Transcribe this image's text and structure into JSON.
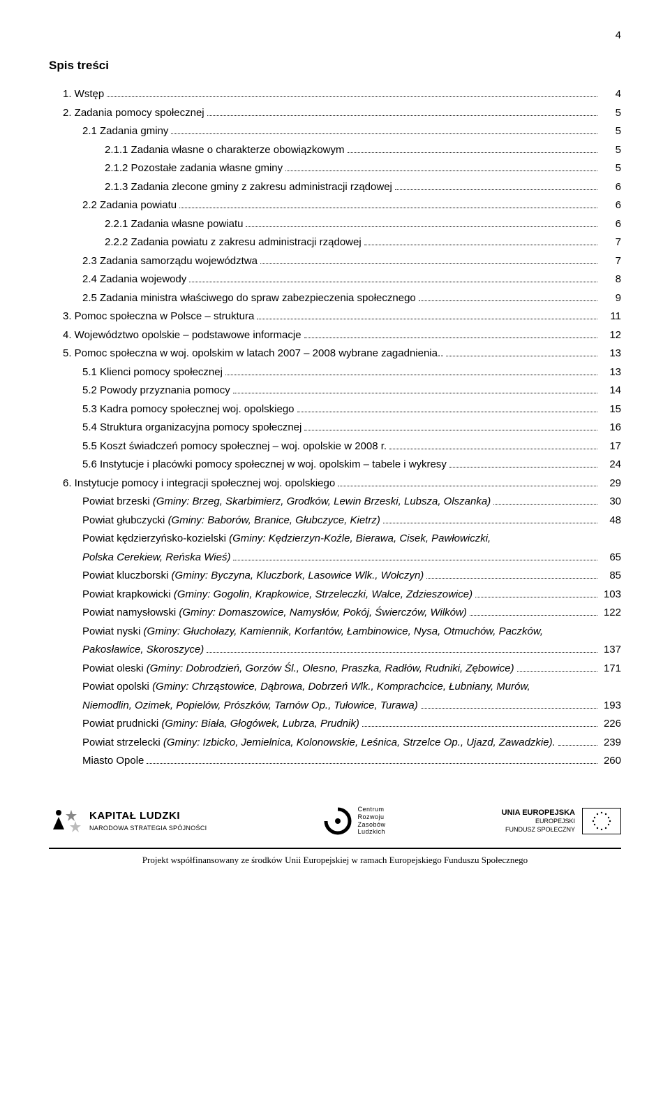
{
  "page_number_top": "4",
  "title": "Spis treści",
  "toc": [
    {
      "label": "1.  Wstęp",
      "page": "4",
      "indent": 0
    },
    {
      "label": "2.  Zadania pomocy społecznej",
      "page": "5",
      "indent": 0
    },
    {
      "label": "2.1 Zadania gminy",
      "page": "5",
      "indent": 1
    },
    {
      "label": "2.1.1  Zadania własne o charakterze obowiązkowym",
      "page": "5",
      "indent": 2
    },
    {
      "label": "2.1.2  Pozostałe zadania własne gminy",
      "page": "5",
      "indent": 2
    },
    {
      "label": "2.1.3  Zadania zlecone gminy z zakresu administracji rządowej",
      "page": "6",
      "indent": 2
    },
    {
      "label": "2.2 Zadania powiatu",
      "page": "6",
      "indent": 1
    },
    {
      "label": "2.2.1  Zadania własne powiatu",
      "page": "6",
      "indent": 2
    },
    {
      "label": "2.2.2  Zadania powiatu z zakresu administracji rządowej",
      "page": "7",
      "indent": 2
    },
    {
      "label": "2.3 Zadania samorządu województwa",
      "page": "7",
      "indent": 1
    },
    {
      "label": "2.4 Zadania wojewody",
      "page": "8",
      "indent": 1
    },
    {
      "label": "2.5 Zadania ministra właściwego do spraw zabezpieczenia społecznego",
      "page": "9",
      "indent": 1
    },
    {
      "label": "3.  Pomoc społeczna w Polsce – struktura",
      "page": "11",
      "indent": 0
    },
    {
      "label": "4.  Województwo opolskie – podstawowe informacje",
      "page": "12",
      "indent": 0
    },
    {
      "label": "5.  Pomoc społeczna w woj. opolskim w latach 2007 – 2008 wybrane zagadnienia..",
      "page": "13",
      "indent": 0
    },
    {
      "label": "5.1 Klienci pomocy społecznej",
      "page": "13",
      "indent": 1
    },
    {
      "label": "5.2 Powody przyznania pomocy",
      "page": "14",
      "indent": 1
    },
    {
      "label": "5.3 Kadra pomocy społecznej woj. opolskiego",
      "page": "15",
      "indent": 1
    },
    {
      "label": "5.4 Struktura organizacyjna pomocy społecznej",
      "page": "16",
      "indent": 1
    },
    {
      "label": "5.5 Koszt świadczeń pomocy społecznej – woj. opolskie w 2008 r.",
      "page": "17",
      "indent": 1
    },
    {
      "label": "5.6 Instytucje i placówki pomocy społecznej w woj. opolskim – tabele i wykresy",
      "page": "24",
      "indent": 1
    },
    {
      "label": "6.  Instytucje pomocy i integracji społecznej woj. opolskiego",
      "page": "29",
      "indent": 0
    },
    {
      "label": "Powiat brzeski",
      "italic": "(Gminy: Brzeg, Skarbimierz, Grodków, Lewin Brzeski, Lubsza, Olszanka)",
      "page": "30",
      "indent": 1
    },
    {
      "label": "Powiat głubczycki",
      "italic": "(Gminy: Baborów, Branice, Głubczyce, Kietrz)",
      "page": "48",
      "indent": 1
    },
    {
      "label": "Powiat kędzierzyńsko-kozielski",
      "italic": "(Gminy: Kędzierzyn-Koźle, Bierawa, Cisek, Pawłowiczki,",
      "page": "",
      "indent": 1,
      "no_dots": true
    },
    {
      "label": "",
      "italic": "Polska Cerekiew, Reńska Wieś)",
      "page": "65",
      "indent": 1
    },
    {
      "label": "Powiat kluczborski",
      "italic": "(Gminy: Byczyna, Kluczbork, Lasowice Wlk., Wołczyn)",
      "page": "85",
      "indent": 1
    },
    {
      "label": "Powiat krapkowicki",
      "italic": "(Gminy: Gogolin, Krapkowice, Strzeleczki, Walce, Zdzieszowice)",
      "page": "103",
      "indent": 1
    },
    {
      "label": "Powiat namysłowski",
      "italic": "(Gminy: Domaszowice, Namysłów, Pokój, Świerczów, Wilków)",
      "page": "122",
      "indent": 1
    },
    {
      "label": "Powiat nyski",
      "italic": "(Gminy: Głuchołazy, Kamiennik, Korfantów, Łambinowice, Nysa, Otmuchów, Paczków,",
      "page": "",
      "indent": 1,
      "no_dots": true
    },
    {
      "label": "",
      "italic": "Pakosławice, Skoroszyce)",
      "page": "137",
      "indent": 1
    },
    {
      "label": "Powiat oleski",
      "italic": "(Gminy: Dobrodzień, Gorzów Śl., Olesno, Praszka, Radłów, Rudniki, Zębowice)",
      "page": "171",
      "indent": 1
    },
    {
      "label": "Powiat opolski",
      "italic": "(Gminy: Chrząstowice, Dąbrowa, Dobrzeń Wlk., Komprachcice, Łubniany, Murów,",
      "page": "",
      "indent": 1,
      "no_dots": true
    },
    {
      "label": "",
      "italic": "Niemodlin, Ozimek, Popielów, Prószków, Tarnów Op., Tułowice, Turawa)",
      "page": "193",
      "indent": 1
    },
    {
      "label": "Powiat prudnicki",
      "italic": "(Gminy: Biała, Głogówek, Lubrza, Prudnik)",
      "page": "226",
      "indent": 1
    },
    {
      "label": "Powiat strzelecki",
      "italic": "(Gminy: Izbicko, Jemielnica, Kolonowskie, Leśnica, Strzelce Op., Ujazd, Zawadzkie).",
      "page": "239",
      "indent": 1
    },
    {
      "label": "Miasto Opole",
      "page": "260",
      "indent": 1
    }
  ],
  "footer": {
    "kl_title": "KAPITAŁ LUDZKI",
    "kl_sub": "NARODOWA STRATEGIA SPÓJNOŚCI",
    "crz_lines": [
      "Centrum",
      "Rozwoju",
      "Zasobów",
      "Ludzkich"
    ],
    "eu_title": "UNIA EUROPEJSKA",
    "eu_sub1": "EUROPEJSKI",
    "eu_sub2": "FUNDUSZ SPOŁECZNY",
    "attribution": "Projekt współfinansowany ze środków Unii Europejskiej w ramach Europejskiego Funduszu Społecznego"
  }
}
